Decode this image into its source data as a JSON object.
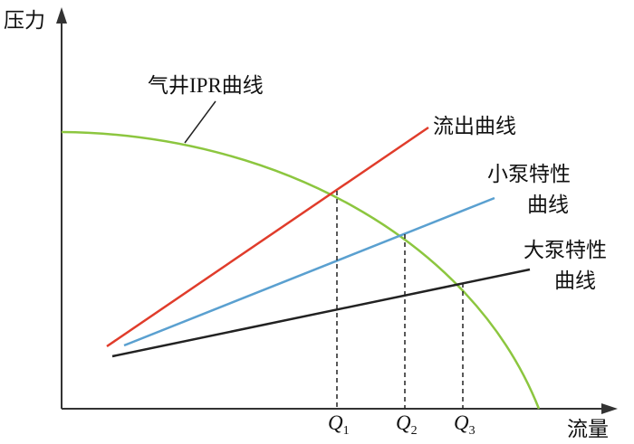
{
  "axes": {
    "y_label": "压力",
    "x_label": "流量"
  },
  "curves": {
    "ipr": "气井IPR曲线",
    "outflow": "流出曲线",
    "small_pump": [
      "小泵特性",
      "曲线"
    ],
    "large_pump": [
      "大泵特性",
      "曲线"
    ]
  },
  "points": [
    {
      "main": "Q",
      "sub": "1"
    },
    {
      "main": "Q",
      "sub": "2"
    },
    {
      "main": "Q",
      "sub": "3"
    }
  ]
}
